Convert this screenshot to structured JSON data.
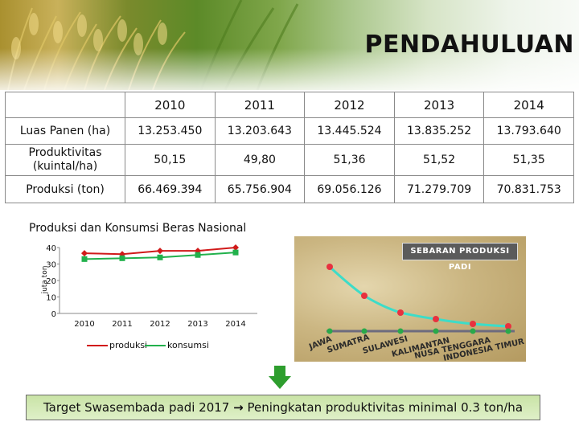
{
  "page": {
    "title": "PENDAHULUAN"
  },
  "table": {
    "years": [
      "2010",
      "2011",
      "2012",
      "2013",
      "2014"
    ],
    "rows": [
      {
        "label": "Luas Panen (ha)",
        "values": [
          "13.253.450",
          "13.203.643",
          "13.445.524",
          "13.835.252",
          "13.793.640"
        ]
      },
      {
        "label_line1": "Produktivitas",
        "label_line2": "(kuintal/ha)",
        "values": [
          "50,15",
          "49,80",
          "51,36",
          "51,52",
          "51,35"
        ]
      },
      {
        "label": "Produksi (ton)",
        "values": [
          "66.469.394",
          "65.756.904",
          "69.056.126",
          "71.279.709",
          "70.831.753"
        ]
      }
    ]
  },
  "chart_data": {
    "type": "line",
    "title": "Produksi dan Konsumsi Beras Nasional",
    "ylabel": "juta ton",
    "xlabel": "",
    "categories": [
      "2010",
      "2011",
      "2012",
      "2013",
      "2014"
    ],
    "yticks": [
      "0",
      "10",
      "20",
      "30",
      "40"
    ],
    "ylim": [
      0,
      40
    ],
    "grid": false,
    "legend_position": "bottom",
    "series": [
      {
        "name": "produksi",
        "values": [
          36.5,
          36,
          38,
          38,
          40
        ],
        "color": "#d11a1a",
        "marker": "diamond"
      },
      {
        "name": "konsumsi",
        "values": [
          33,
          33.5,
          34,
          35.5,
          37
        ],
        "color": "#22b14c",
        "marker": "square"
      }
    ]
  },
  "map_panel": {
    "label": "SEBARAN PRODUKSI PADI",
    "regions": [
      "JAWA",
      "SUMATRA",
      "SULAWESI",
      "KALIMANTAN",
      "NUSA TENGGARA",
      "INDONESIA TIMUR"
    ],
    "colors": {
      "curve": "#3ddcc8",
      "points": "#e8313f",
      "baseline": "#6d6b7e",
      "baseline_points": "#29a94a"
    }
  },
  "target": {
    "text_before": "Target Swasembada padi 2017",
    "arrow": "→",
    "text_after": "Peningkatan produktivitas minimal  0.3 ton/ha"
  },
  "colors": {
    "arrow_green": "#2e9e2e",
    "target_bg": "#d5ebbb"
  }
}
